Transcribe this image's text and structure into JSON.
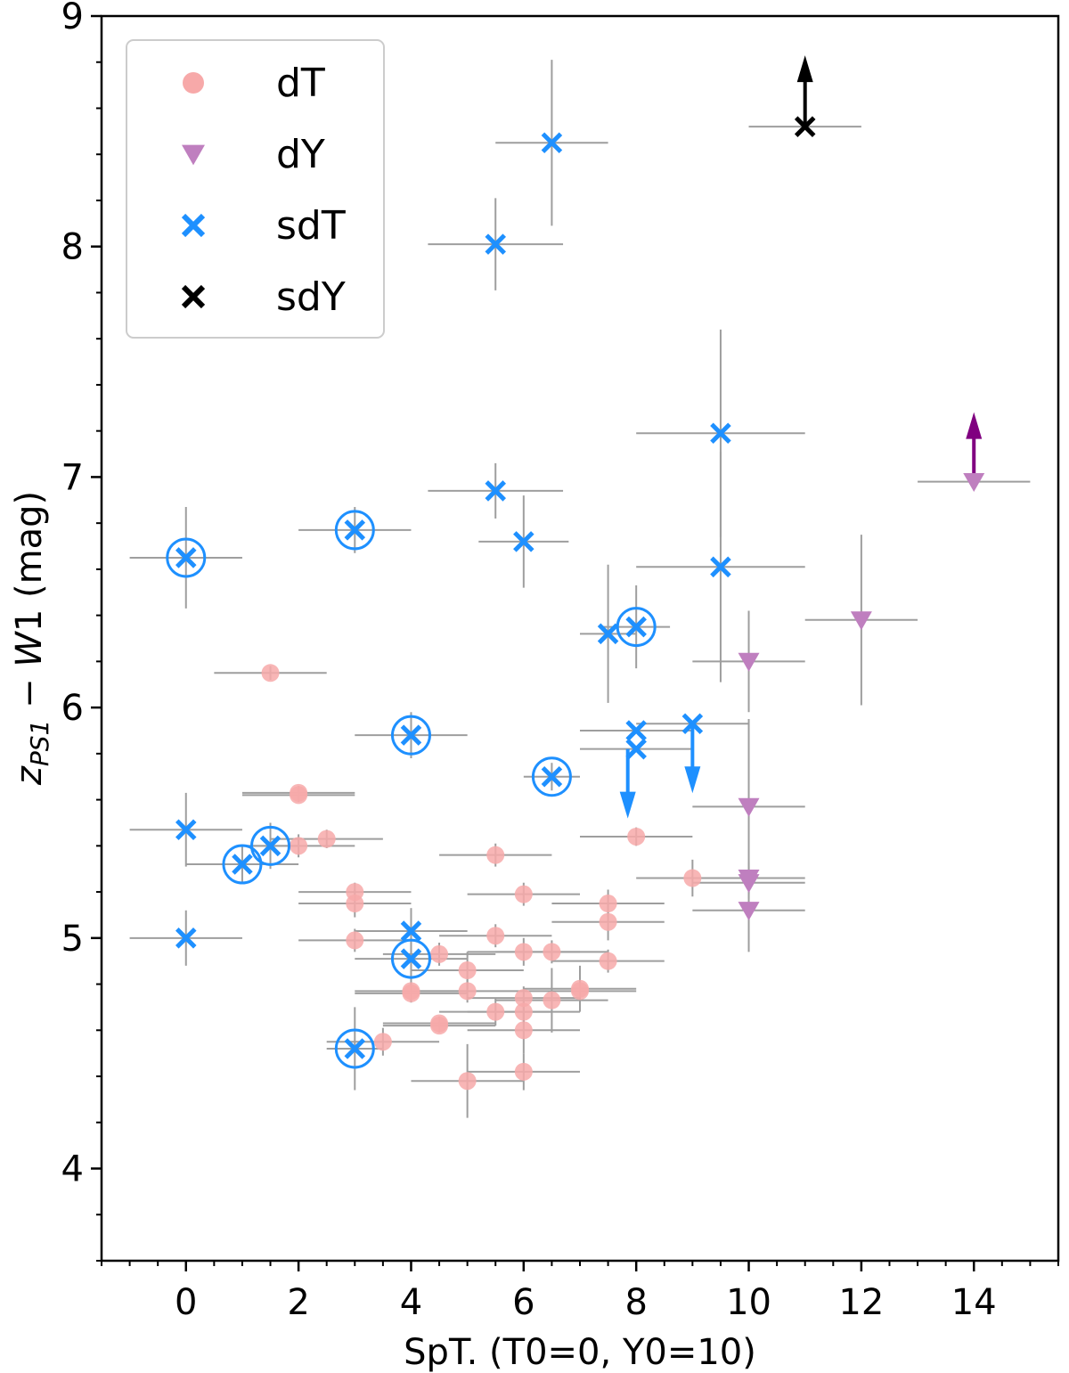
{
  "chart_data": {
    "type": "scatter",
    "title": "",
    "xlabel": "SpT. (T0=0, Y0=10)",
    "ylabel_parts": {
      "z": "z",
      "sub": "PS1",
      "minus": " − ",
      "w": "W",
      "one": "1",
      "unit": " (mag)"
    },
    "xlim": [
      -1.5,
      15.5
    ],
    "ylim": [
      3.6,
      9.0
    ],
    "xticks": [
      0,
      2,
      4,
      6,
      8,
      10,
      12,
      14
    ],
    "yticks": [
      4,
      5,
      6,
      7,
      8,
      9
    ],
    "legend_position": "top-left",
    "colors": {
      "dT": "#f7a9a9",
      "dY": "#bf7fbf",
      "sdT": "#1e90ff",
      "sdY": "#000000",
      "dY_limit": "#800080",
      "errorbar": "#9e9e9e"
    },
    "legend": [
      {
        "label": "dT",
        "series": "dT"
      },
      {
        "label": "dY",
        "series": "dY"
      },
      {
        "label": "sdT",
        "series": "sdT"
      },
      {
        "label": "sdY",
        "series": "sdY"
      }
    ],
    "series": [
      {
        "name": "dT",
        "marker": "circle",
        "points": [
          {
            "x": 1.5,
            "y": 6.15,
            "xerr": 1.0,
            "yerr": 0.03
          },
          {
            "x": 2.0,
            "y": 5.63,
            "xerr": 1.0,
            "yerr": 0.03
          },
          {
            "x": 2.0,
            "y": 5.62,
            "xerr": 1.0,
            "yerr": 0.03
          },
          {
            "x": 2.0,
            "y": 5.4,
            "xerr": 1.0,
            "yerr": 0.05
          },
          {
            "x": 2.5,
            "y": 5.43,
            "xerr": 1.0,
            "yerr": 0.04
          },
          {
            "x": 3.0,
            "y": 5.2,
            "xerr": 1.0,
            "yerr": 0.04
          },
          {
            "x": 3.0,
            "y": 5.15,
            "xerr": 1.0,
            "yerr": 0.06
          },
          {
            "x": 3.0,
            "y": 4.99,
            "xerr": 1.0,
            "yerr": 0.05
          },
          {
            "x": 3.5,
            "y": 4.55,
            "xerr": 1.0,
            "yerr": 0.06
          },
          {
            "x": 4.0,
            "y": 4.77,
            "xerr": 1.0,
            "yerr": 0.04
          },
          {
            "x": 4.0,
            "y": 4.76,
            "xerr": 1.0,
            "yerr": 0.04
          },
          {
            "x": 4.5,
            "y": 4.93,
            "xerr": 1.0,
            "yerr": 0.05
          },
          {
            "x": 4.5,
            "y": 4.63,
            "xerr": 1.0,
            "yerr": 0.03
          },
          {
            "x": 4.5,
            "y": 4.62,
            "xerr": 1.0,
            "yerr": 0.03
          },
          {
            "x": 5.0,
            "y": 4.86,
            "xerr": 1.0,
            "yerr": 0.08
          },
          {
            "x": 5.0,
            "y": 4.77,
            "xerr": 1.0,
            "yerr": 0.05
          },
          {
            "x": 5.0,
            "y": 4.38,
            "xerr": 1.0,
            "yerr": 0.16
          },
          {
            "x": 5.5,
            "y": 5.36,
            "xerr": 1.0,
            "yerr": 0.05
          },
          {
            "x": 5.5,
            "y": 5.01,
            "xerr": 1.0,
            "yerr": 0.05
          },
          {
            "x": 5.5,
            "y": 4.68,
            "xerr": 1.0,
            "yerr": 0.06
          },
          {
            "x": 6.0,
            "y": 5.19,
            "xerr": 1.0,
            "yerr": 0.05
          },
          {
            "x": 6.0,
            "y": 4.94,
            "xerr": 1.0,
            "yerr": 0.06
          },
          {
            "x": 6.0,
            "y": 4.74,
            "xerr": 1.0,
            "yerr": 0.05
          },
          {
            "x": 6.0,
            "y": 4.68,
            "xerr": 1.0,
            "yerr": 0.05
          },
          {
            "x": 6.0,
            "y": 4.6,
            "xerr": 1.0,
            "yerr": 0.1
          },
          {
            "x": 6.0,
            "y": 4.42,
            "xerr": 1.0,
            "yerr": 0.08
          },
          {
            "x": 6.5,
            "y": 4.94,
            "xerr": 1.0,
            "yerr": 0.05
          },
          {
            "x": 6.5,
            "y": 4.73,
            "xerr": 1.0,
            "yerr": 0.14
          },
          {
            "x": 7.0,
            "y": 4.78,
            "xerr": 1.0,
            "yerr": 0.1
          },
          {
            "x": 7.0,
            "y": 4.77,
            "xerr": 1.0,
            "yerr": 0.04
          },
          {
            "x": 7.5,
            "y": 5.15,
            "xerr": 1.0,
            "yerr": 0.06
          },
          {
            "x": 7.5,
            "y": 5.07,
            "xerr": 1.0,
            "yerr": 0.08
          },
          {
            "x": 7.5,
            "y": 4.9,
            "xerr": 1.0,
            "yerr": 0.05
          },
          {
            "x": 8.0,
            "y": 5.44,
            "xerr": 1.0,
            "yerr": 0.04
          },
          {
            "x": 9.0,
            "y": 5.26,
            "xerr": 1.0,
            "yerr": 0.08
          }
        ]
      },
      {
        "name": "dY",
        "marker": "triangle-down",
        "points": [
          {
            "x": 10.0,
            "y": 6.2,
            "xerr": 1.0,
            "yerr": 0.22
          },
          {
            "x": 10.0,
            "y": 5.57,
            "xerr": 1.0,
            "yerr": 0.38
          },
          {
            "x": 10.0,
            "y": 5.26,
            "xerr": 1.0,
            "yerr": 0.07
          },
          {
            "x": 10.0,
            "y": 5.24,
            "xerr": 1.0,
            "yerr": 0.07
          },
          {
            "x": 10.0,
            "y": 5.12,
            "xerr": 1.0,
            "yerr": 0.18
          },
          {
            "x": 12.0,
            "y": 6.38,
            "xerr": 1.0,
            "yerr": 0.37
          },
          {
            "x": 14.0,
            "y": 6.98,
            "xerr": 1.0,
            "yerr": 0.0,
            "lower_limit": true
          }
        ]
      },
      {
        "name": "sdT",
        "marker": "x",
        "points": [
          {
            "x": 0.0,
            "y": 6.65,
            "xerr": 1.0,
            "yerr": 0.22,
            "circled": true
          },
          {
            "x": 0.0,
            "y": 5.47,
            "xerr": 1.0,
            "yerr": 0.16
          },
          {
            "x": 0.0,
            "y": 5.0,
            "xerr": 1.0,
            "yerr": 0.12
          },
          {
            "x": 1.0,
            "y": 5.32,
            "xerr": 1.0,
            "yerr": 0.08,
            "circled": true
          },
          {
            "x": 1.5,
            "y": 5.4,
            "xerr": 0.5,
            "yerr": 0.1,
            "circled": true
          },
          {
            "x": 3.0,
            "y": 6.77,
            "xerr": 1.0,
            "yerr": 0.1,
            "circled": true
          },
          {
            "x": 3.0,
            "y": 4.52,
            "xerr": 0.5,
            "yerr": 0.18,
            "circled": true
          },
          {
            "x": 4.0,
            "y": 5.88,
            "xerr": 1.0,
            "yerr": 0.1,
            "circled": true
          },
          {
            "x": 4.0,
            "y": 5.03,
            "xerr": 1.0,
            "yerr": 0.1
          },
          {
            "x": 4.0,
            "y": 4.91,
            "xerr": 1.0,
            "yerr": 0.12,
            "circled": true
          },
          {
            "x": 5.5,
            "y": 8.01,
            "xerr": 1.2,
            "yerr": 0.2
          },
          {
            "x": 5.5,
            "y": 6.94,
            "xerr": 1.2,
            "yerr": 0.12
          },
          {
            "x": 6.0,
            "y": 6.72,
            "xerr": 0.8,
            "yerr": 0.2
          },
          {
            "x": 6.5,
            "y": 8.45,
            "xerr": 1.0,
            "yerr": 0.36
          },
          {
            "x": 6.5,
            "y": 5.7,
            "xerr": 0.5,
            "yerr": 0.06,
            "circled": true
          },
          {
            "x": 7.5,
            "y": 6.32,
            "xerr": 0.5,
            "yerr": 0.3
          },
          {
            "x": 8.0,
            "y": 6.35,
            "xerr": 0.6,
            "yerr": 0.18,
            "circled": true
          },
          {
            "x": 8.0,
            "y": 5.9,
            "xerr": 1.0,
            "yerr": 0.0
          },
          {
            "x": 8.0,
            "y": 5.82,
            "xerr": 1.0,
            "yerr": 0.0
          },
          {
            "x": 9.0,
            "y": 5.93,
            "xerr": 1.0,
            "yerr": 0.0
          },
          {
            "x": 9.5,
            "y": 7.19,
            "xerr": 1.5,
            "yerr": 0.45
          },
          {
            "x": 9.5,
            "y": 6.61,
            "xerr": 1.5,
            "yerr": 0.5
          }
        ],
        "upper_limits": [
          {
            "x": 7.85,
            "y": 5.82
          },
          {
            "x": 9.0,
            "y": 5.93
          }
        ]
      },
      {
        "name": "sdY",
        "marker": "x",
        "points": [
          {
            "x": 11.0,
            "y": 8.52,
            "xerr": 1.0,
            "yerr": 0.0,
            "lower_limit": true
          }
        ]
      }
    ]
  }
}
